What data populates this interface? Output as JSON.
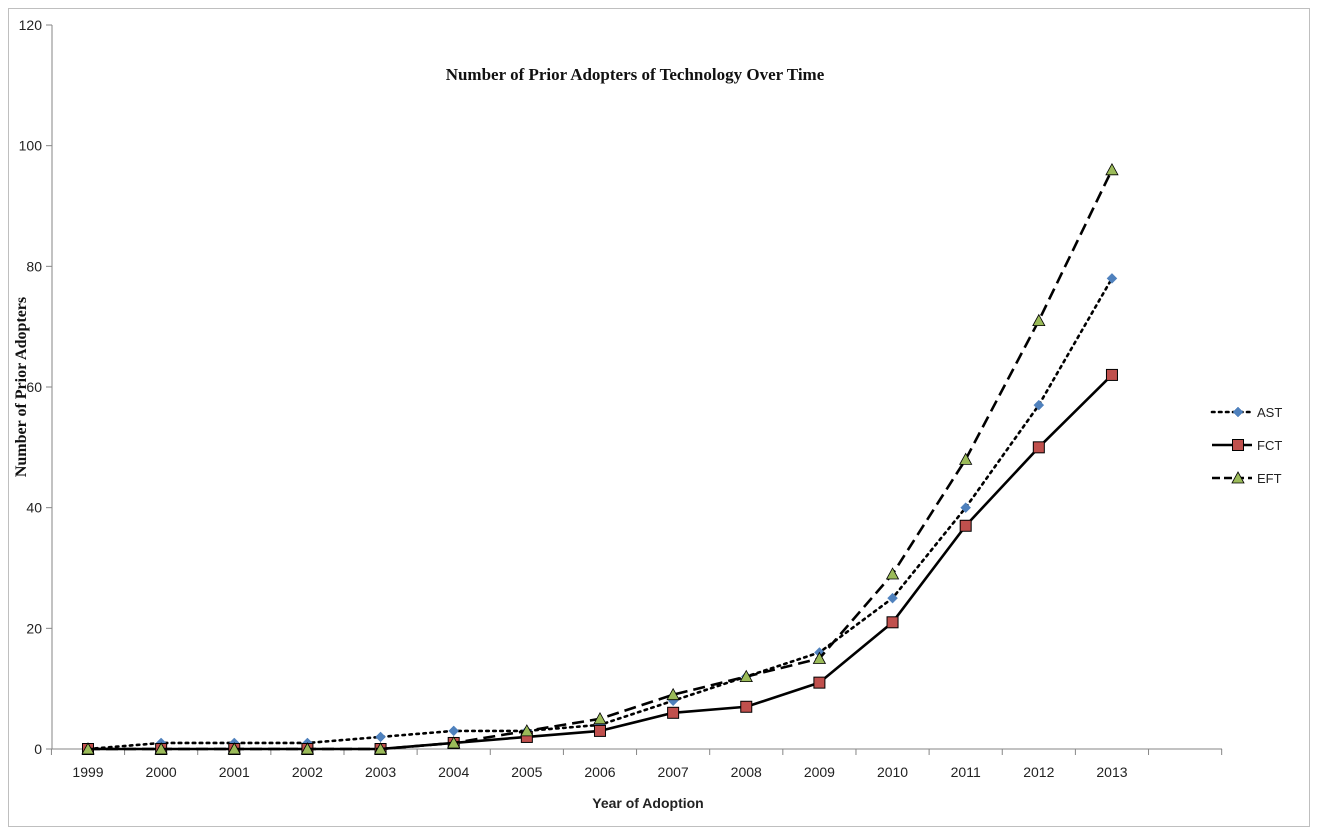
{
  "chart_data": {
    "type": "line",
    "title": "Number of Prior Adopters of Technology Over Time",
    "xlabel": "Year of Adoption",
    "ylabel": "Number of Prior Adopters",
    "categories": [
      "1999",
      "2000",
      "2001",
      "2002",
      "2003",
      "2004",
      "2005",
      "2006",
      "2007",
      "2008",
      "2009",
      "2010",
      "2011",
      "2012",
      "2013"
    ],
    "yticks": [
      "0",
      "20",
      "40",
      "60",
      "80",
      "100",
      "120"
    ],
    "ylim": [
      0,
      120
    ],
    "grid": false,
    "legend_position": "right",
    "series": [
      {
        "name": "AST",
        "color": "#4f81bd",
        "line_style": "dotted",
        "marker": "diamond",
        "values": [
          0,
          1,
          1,
          1,
          2,
          3,
          3,
          4,
          8,
          12,
          16,
          25,
          40,
          57,
          78
        ]
      },
      {
        "name": "FCT",
        "color": "#c0504d",
        "line_style": "solid",
        "marker": "square",
        "values": [
          0,
          0,
          0,
          0,
          0,
          1,
          2,
          3,
          6,
          7,
          11,
          21,
          37,
          50,
          62
        ]
      },
      {
        "name": "EFT",
        "color": "#9bbb59",
        "line_style": "dashed",
        "marker": "triangle",
        "values": [
          0,
          0,
          0,
          0,
          0,
          1,
          3,
          5,
          9,
          12,
          15,
          29,
          48,
          71,
          96
        ]
      }
    ]
  }
}
